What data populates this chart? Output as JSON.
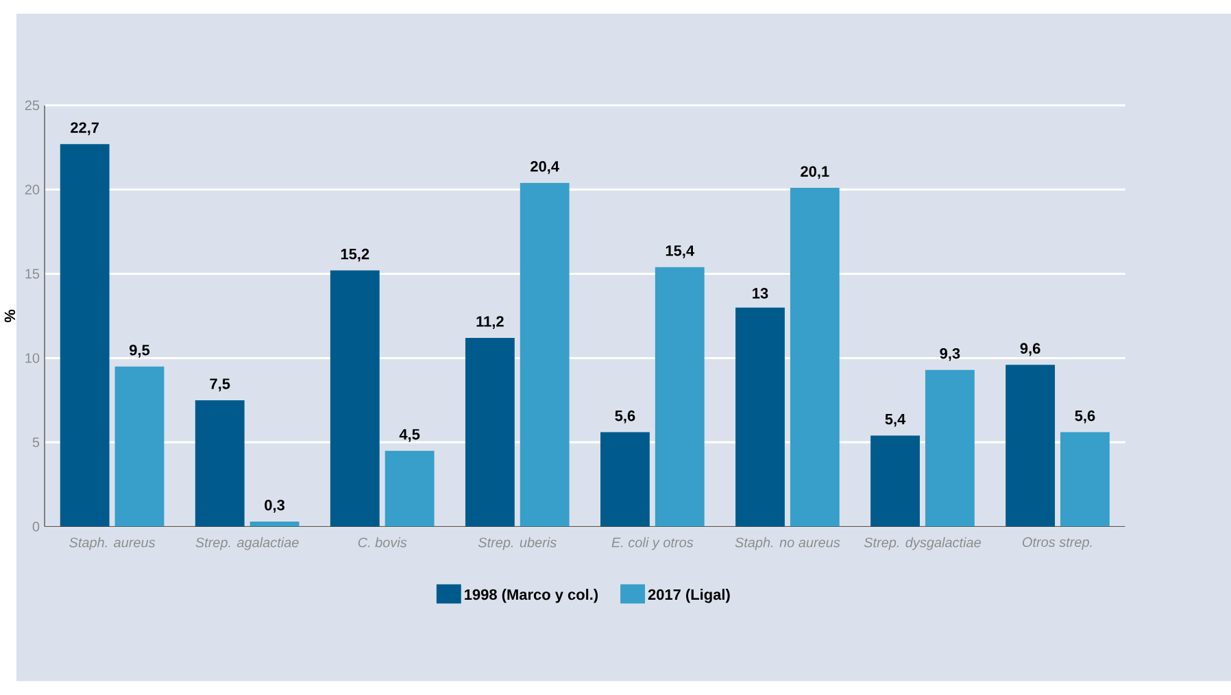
{
  "chart_data": {
    "type": "bar",
    "ylabel": "%",
    "categories": [
      "Staph. aureus",
      "Strep. agalactiae",
      "C. bovis",
      "Strep. uberis",
      "E. coli y otros",
      "Staph. no aureus",
      "Strep. dysgalactiae",
      "Otros strep."
    ],
    "series": [
      {
        "name": "1998 (Marco y col.)",
        "color": "#005b8c",
        "values": [
          22.7,
          7.5,
          15.2,
          11.2,
          5.6,
          13,
          5.4,
          9.6
        ],
        "value_labels": [
          "22,7",
          "7,5",
          "15,2",
          "11,2",
          "5,6",
          "13",
          "5,4",
          "9,6"
        ]
      },
      {
        "name": "2017 (Ligal)",
        "color": "#379fc9",
        "values": [
          9.5,
          0.3,
          4.5,
          20.4,
          15.4,
          20.1,
          9.3,
          5.6
        ],
        "value_labels": [
          "9,5",
          "0,3",
          "4,5",
          "20,4",
          "15,4",
          "20,1",
          "9,3",
          "5,6"
        ]
      }
    ],
    "ylim": [
      0,
      25
    ],
    "yticks": [
      0,
      5,
      10,
      15,
      20,
      25
    ],
    "grid": "y",
    "legend": "bottom"
  }
}
